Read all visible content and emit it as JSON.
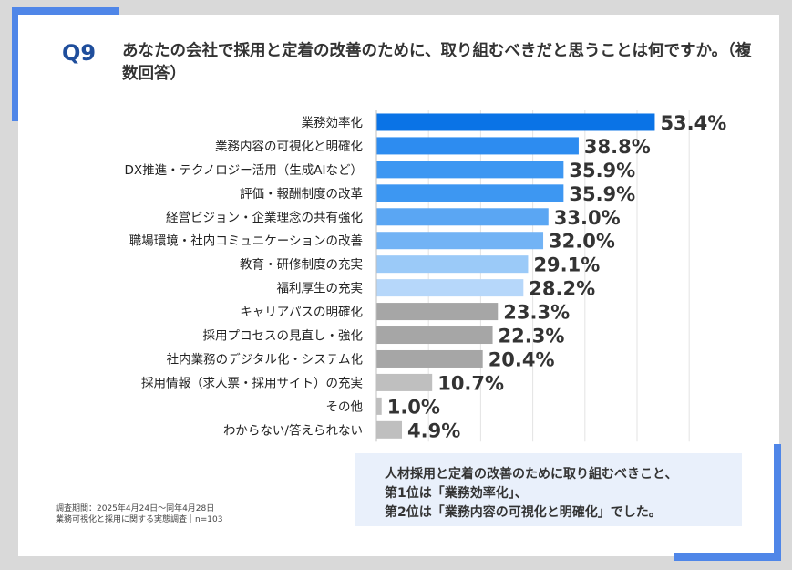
{
  "question": {
    "number": "Q9",
    "title": "あなたの会社で採用と定着の改善のために、取り組むべきだと思うことは何ですか。（複数回答）"
  },
  "chart_data": {
    "type": "bar",
    "orientation": "horizontal",
    "categories": [
      "業務効率化",
      "業務内容の可視化と明確化",
      "DX推進・テクノロジー活用（生成AIなど）",
      "評価・報酬制度の改革",
      "経営ビジョン・企業理念の共有強化",
      "職場環境・社内コミュニケーションの改善",
      "教育・研修制度の充実",
      "福利厚生の充実",
      "キャリアパスの明確化",
      "採用プロセスの見直し・強化",
      "社内業務のデジタル化・システム化",
      "採用情報（求人票・採用サイト）の充実",
      "その他",
      "わからない/答えられない"
    ],
    "values": [
      53.4,
      38.8,
      35.9,
      35.9,
      33.0,
      32.0,
      29.1,
      28.2,
      23.3,
      22.3,
      20.4,
      10.7,
      1.0,
      4.9
    ],
    "value_labels": [
      "53.4%",
      "38.8%",
      "35.9%",
      "35.9%",
      "33.0%",
      "32.0%",
      "29.1%",
      "28.2%",
      "23.3%",
      "22.3%",
      "20.4%",
      "10.7%",
      "1.0%",
      "4.9%"
    ],
    "colors": [
      "#0a73e6",
      "#2d8cf0",
      "#3d97f2",
      "#3d97f2",
      "#5aa6f3",
      "#72b3f5",
      "#9bcaf8",
      "#b6d7fa",
      "#a6a6a6",
      "#a6a6a6",
      "#a6a6a6",
      "#bfbfbf",
      "#bfbfbf",
      "#bfbfbf"
    ],
    "xlim": [
      0,
      60
    ],
    "grid": true,
    "unit": "%"
  },
  "callout": {
    "line1": "人材採用と定着の改善のために取り組むべきこと、",
    "line2": "第1位は「業務効率化」、",
    "line3": "第2位は「業務内容の可視化と明確化」でした。"
  },
  "footnote": {
    "line1": "調査期間：2025年4月24日～同年4月28日",
    "line2": "業務可視化と採用に関する実態調査｜n=103"
  }
}
